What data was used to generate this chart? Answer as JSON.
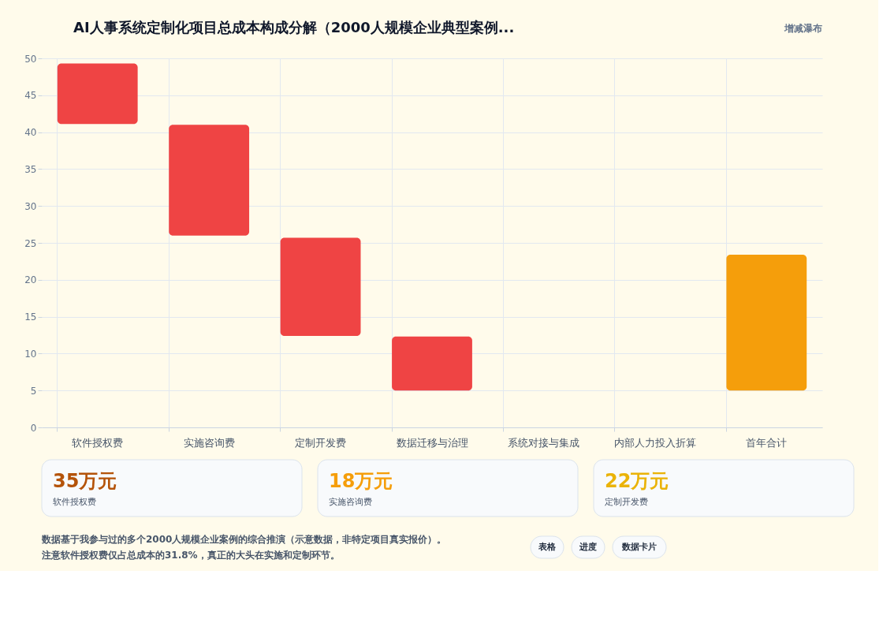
{
  "chart_data": {
    "type": "bar",
    "title": "AI人事系统定制化项目总成本构成分解（2000人规模企业典型案例...",
    "categories": [
      "软件授权费",
      "实施咨询费",
      "定制开发费",
      "数据迁移与治理",
      "系统对接与集成",
      "内部人力投入折算",
      "首年合计"
    ],
    "base": [
      41.1,
      26.0,
      12.4,
      5.0,
      null,
      null,
      5.0
    ],
    "values": [
      8.2,
      15.0,
      13.3,
      7.3,
      null,
      null,
      18.4
    ],
    "colors": [
      "#ef4444",
      "#ef4444",
      "#ef4444",
      "#ef4444",
      "#ef4444",
      "#ef4444",
      "#f59e0b"
    ],
    "ylim": [
      0,
      50
    ],
    "yticks": [
      0,
      5,
      10,
      15,
      20,
      25,
      30,
      35,
      40,
      45,
      50
    ],
    "grid": true,
    "legend": false,
    "annotations": [
      "增减瀑布",
      "35万元",
      "软件授权费",
      "18万元",
      "实施咨询费",
      "22万元",
      "定制开发费",
      "数据基于我参与过的多个2000人规模企业案例的综合推演（示意数据，非特定项目真实报价）。注意软件授权费仅占总成本的31.8%，真正的大头在实施和定制环节。",
      "表格",
      "进度",
      "数据卡片"
    ]
  }
}
